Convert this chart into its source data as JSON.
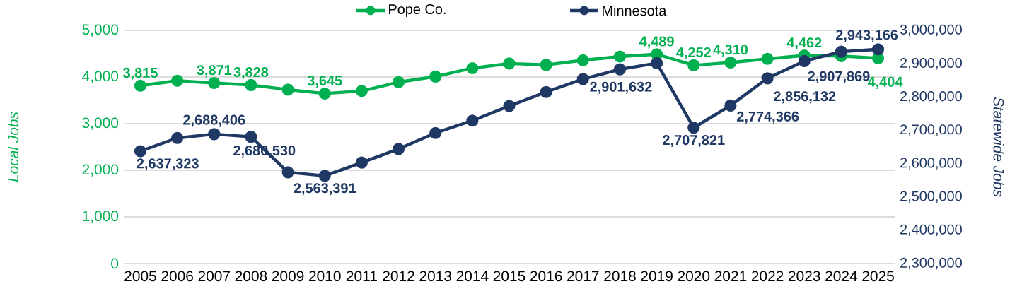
{
  "chart_data": {
    "type": "line",
    "categories": [
      "2005",
      "2006",
      "2007",
      "2008",
      "2009",
      "2010",
      "2011",
      "2012",
      "2013",
      "2014",
      "2015",
      "2016",
      "2017",
      "2018",
      "2019",
      "2020",
      "2021",
      "2022",
      "2023",
      "2024",
      "2025"
    ],
    "ylabel": "Local Jobs",
    "y2label": "Statewide Jobs",
    "ylim": [
      0,
      5000
    ],
    "yticks": [
      0,
      {
        "value": 1000,
        "label": "1,000"
      },
      {
        "value": 2000,
        "label": "2,000"
      },
      {
        "value": 3000,
        "label": "3,000"
      },
      {
        "value": 4000,
        "label": "4,000"
      },
      {
        "value": 5000,
        "label": "5,000"
      }
    ],
    "y2lim": [
      2300000,
      3000000
    ],
    "y2ticks": [
      {
        "value": 2300000,
        "label": "2,300,000"
      },
      {
        "value": 2400000,
        "label": "2,400,000"
      },
      {
        "value": 2500000,
        "label": "2,500,000"
      },
      {
        "value": 2600000,
        "label": "2,600,000"
      },
      {
        "value": 2700000,
        "label": "2,700,000"
      },
      {
        "value": 2800000,
        "label": "2,800,000"
      },
      {
        "value": 2900000,
        "label": "2,900,000"
      },
      {
        "value": 3000000,
        "label": "3,000,000"
      }
    ],
    "grid": "y",
    "legend": "top",
    "marker": "circle",
    "series": [
      {
        "name": "Pope Co.",
        "color": "#00b050",
        "values": [
          3815,
          3920,
          3871,
          3828,
          3730,
          3645,
          3700,
          3890,
          4010,
          4190,
          4290,
          4260,
          4360,
          4440,
          4489,
          4252,
          4310,
          4390,
          4462,
          4450,
          4404
        ],
        "value_labels": [
          "3,815",
          null,
          "3,871",
          "3,828",
          null,
          "3,645",
          null,
          null,
          null,
          null,
          null,
          null,
          null,
          null,
          "4,489",
          "4,252",
          "4,310",
          null,
          "4,462",
          null,
          "4,404"
        ]
      },
      {
        "name": "Minnesota",
        "color": "#203864",
        "axis": "y2",
        "values": [
          2637323,
          2677000,
          2688406,
          2680530,
          2574000,
          2563391,
          2603000,
          2644000,
          2692000,
          2729000,
          2773000,
          2815000,
          2854000,
          2883000,
          2901632,
          2707821,
          2774366,
          2856132,
          2907869,
          2936000,
          2943166
        ],
        "value_labels": [
          "2,637,323",
          null,
          "2,688,406",
          "2,680,530",
          null,
          "2,563,391",
          null,
          null,
          null,
          null,
          null,
          null,
          null,
          null,
          "2,901,632",
          "2,707,821",
          "2,774,366",
          "2,856,132",
          "2,907,869",
          null,
          "2,943,166"
        ]
      }
    ]
  }
}
